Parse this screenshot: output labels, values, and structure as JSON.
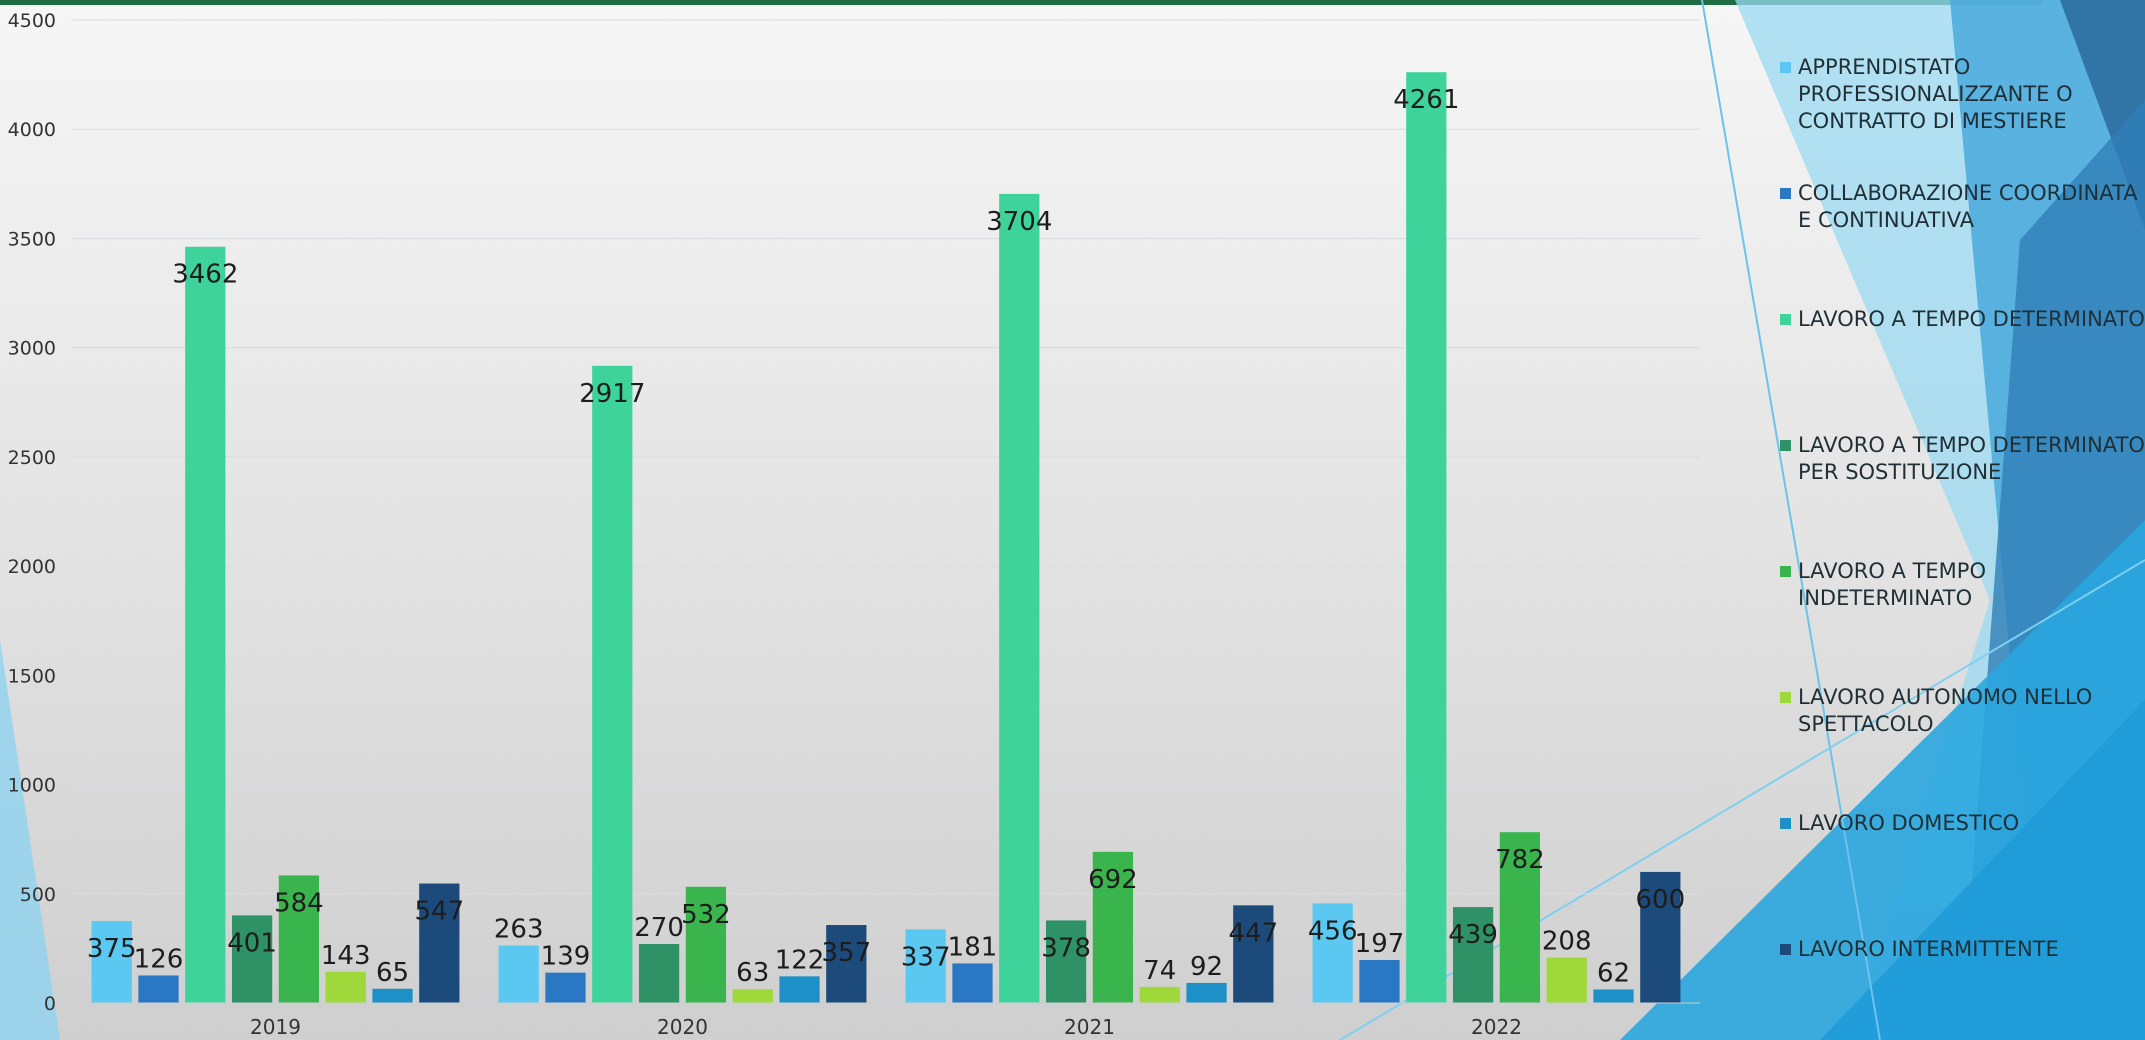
{
  "chart_data": {
    "type": "bar",
    "categories": [
      "2019",
      "2020",
      "2021",
      "2022"
    ],
    "ylim": [
      0,
      4500
    ],
    "yticks": [
      0,
      500,
      1000,
      1500,
      2000,
      2500,
      3000,
      3500,
      4000,
      4500
    ],
    "grid": true,
    "legend_position": "right",
    "series": [
      {
        "name": "APPRENDISTATO PROFESSIONALIZZANTE O CONTRATTO DI MESTIERE",
        "color": "#5bc8f2",
        "values": [
          375,
          263,
          337,
          456
        ]
      },
      {
        "name": "COLLABORAZIONE COORDINATA E CONTINUATIVA",
        "color": "#2a78c4",
        "values": [
          126,
          139,
          181,
          197
        ]
      },
      {
        "name": "LAVORO A TEMPO DETERMINATO",
        "color": "#3fd39c",
        "values": [
          3462,
          2917,
          3704,
          4261
        ]
      },
      {
        "name": "LAVORO A TEMPO DETERMINATO PER SOSTITUZIONE",
        "color": "#2e9266",
        "values": [
          401,
          270,
          378,
          439
        ]
      },
      {
        "name": "LAVORO A TEMPO INDETERMINATO",
        "color": "#3ab54e",
        "values": [
          584,
          532,
          692,
          782
        ]
      },
      {
        "name": "LAVORO AUTONOMO NELLO SPETTACOLO",
        "color": "#9fd83a",
        "values": [
          143,
          63,
          74,
          208
        ]
      },
      {
        "name": "LAVORO DOMESTICO",
        "color": "#1e90c8",
        "values": [
          65,
          122,
          92,
          62
        ]
      },
      {
        "name": "LAVORO INTERMITTENTE",
        "color": "#1c4a7a",
        "values": [
          547,
          357,
          447,
          600
        ]
      }
    ]
  }
}
